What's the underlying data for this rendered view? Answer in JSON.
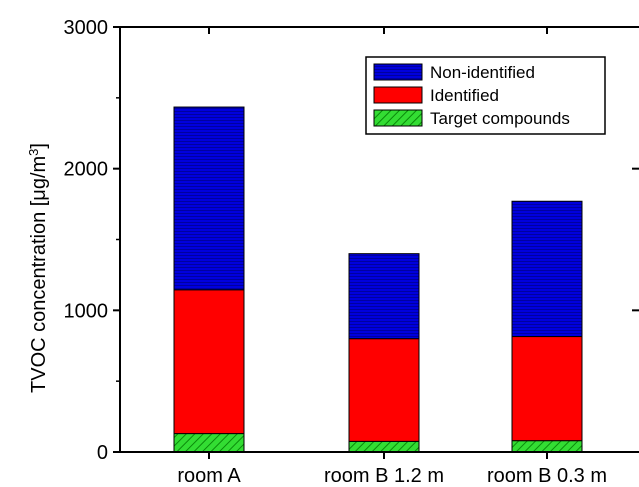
{
  "chart_data": {
    "type": "bar",
    "stacked": true,
    "categories": [
      "room A",
      "room B 1.2 m",
      "room B 0.3 m"
    ],
    "series": [
      {
        "name": "Target compounds",
        "values": [
          130,
          75,
          80
        ],
        "color": "#33dd33",
        "pattern": "diagonal-hatch"
      },
      {
        "name": "Identified",
        "values": [
          1015,
          725,
          735
        ],
        "color": "#ff0000",
        "pattern": "solid"
      },
      {
        "name": "Non-identified",
        "values": [
          1290,
          600,
          955
        ],
        "color": "#0000dd",
        "pattern": "horizontal-lines"
      }
    ],
    "ylabel_prefix": "TVOC concentration [",
    "ylabel_mu": "μ",
    "ylabel_unit": "g/m",
    "ylabel_sup": "3",
    "ylabel_suffix": "]",
    "ylim": [
      0,
      3000
    ],
    "yticks": [
      0,
      1000,
      2000,
      3000
    ],
    "legend_position": "top-right",
    "grid": false
  }
}
